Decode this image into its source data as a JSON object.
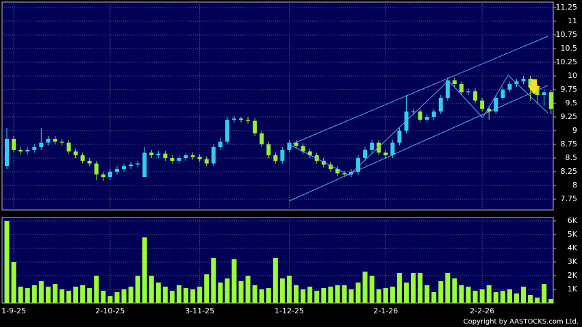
{
  "chart_data": [
    {
      "type": "candlestick",
      "open": [
        8.35,
        8.85,
        8.65,
        8.62,
        8.65,
        8.7,
        8.78,
        8.85,
        8.8,
        8.78,
        8.62,
        8.55,
        8.45,
        8.4,
        8.2,
        8.15,
        8.25,
        8.3,
        8.35,
        8.38,
        8.15,
        8.6,
        8.55,
        8.58,
        8.5,
        8.45,
        8.5,
        8.55,
        8.52,
        8.48,
        8.4,
        8.7,
        8.8,
        9.2,
        9.22,
        9.2,
        9.18,
        8.95,
        8.75,
        8.55,
        8.45,
        8.65,
        8.78,
        8.72,
        8.62,
        8.55,
        8.45,
        8.38,
        8.3,
        8.22,
        8.2,
        8.25,
        8.5,
        8.65,
        8.78,
        8.6,
        8.55,
        8.78,
        9.0,
        9.35,
        9.35,
        9.2,
        9.25,
        9.35,
        9.6,
        9.92,
        9.85,
        9.7,
        9.72,
        9.55,
        9.4,
        9.35,
        9.6,
        9.75,
        9.85,
        9.9,
        9.95,
        9.8,
        9.65,
        9.7
      ],
      "high": [
        9.05,
        8.9,
        8.7,
        8.7,
        8.75,
        9.05,
        8.9,
        8.9,
        8.85,
        8.83,
        8.67,
        8.6,
        8.5,
        8.45,
        8.25,
        8.3,
        8.35,
        8.4,
        8.43,
        8.45,
        8.7,
        8.65,
        8.63,
        8.63,
        8.55,
        8.55,
        8.6,
        8.6,
        8.57,
        8.53,
        8.75,
        8.88,
        9.25,
        9.27,
        9.25,
        9.25,
        9.23,
        9.0,
        8.8,
        8.6,
        8.7,
        8.83,
        8.83,
        8.77,
        8.67,
        8.6,
        8.5,
        8.43,
        8.35,
        8.27,
        8.3,
        8.55,
        8.7,
        8.83,
        8.83,
        8.65,
        8.83,
        9.05,
        9.65,
        9.4,
        9.4,
        9.3,
        9.4,
        9.65,
        9.97,
        9.97,
        9.9,
        9.77,
        9.77,
        9.6,
        9.45,
        9.65,
        9.8,
        9.9,
        9.95,
        10.0,
        10.0,
        9.85,
        9.75,
        9.75
      ],
      "low": [
        8.3,
        8.6,
        8.57,
        8.57,
        8.6,
        8.65,
        8.73,
        8.75,
        8.73,
        8.57,
        8.5,
        8.4,
        8.35,
        8.1,
        8.08,
        8.1,
        8.2,
        8.25,
        8.3,
        8.33,
        8.15,
        8.5,
        8.5,
        8.45,
        8.4,
        8.4,
        8.45,
        8.47,
        8.43,
        8.35,
        8.35,
        8.65,
        8.75,
        9.15,
        9.15,
        9.13,
        8.9,
        8.7,
        8.5,
        8.4,
        8.4,
        8.6,
        8.67,
        8.57,
        8.5,
        8.4,
        8.33,
        8.25,
        8.17,
        8.15,
        8.15,
        8.2,
        8.45,
        8.6,
        8.55,
        8.5,
        8.5,
        8.73,
        8.95,
        9.3,
        9.15,
        9.15,
        9.2,
        9.3,
        9.55,
        9.8,
        9.65,
        9.65,
        9.5,
        9.35,
        9.2,
        9.3,
        9.55,
        9.7,
        9.8,
        9.85,
        9.55,
        9.5,
        9.45,
        9.3
      ],
      "close": [
        8.85,
        8.65,
        8.62,
        8.65,
        8.7,
        8.78,
        8.85,
        8.8,
        8.78,
        8.62,
        8.55,
        8.45,
        8.4,
        8.2,
        8.15,
        8.25,
        8.3,
        8.35,
        8.38,
        8.4,
        8.6,
        8.55,
        8.58,
        8.5,
        8.45,
        8.5,
        8.55,
        8.52,
        8.48,
        8.4,
        8.7,
        8.8,
        9.2,
        9.22,
        9.2,
        9.18,
        8.95,
        8.75,
        8.55,
        8.45,
        8.65,
        8.78,
        8.72,
        8.62,
        8.55,
        8.45,
        8.38,
        8.3,
        8.22,
        8.2,
        8.25,
        8.5,
        8.65,
        8.78,
        8.6,
        8.55,
        8.78,
        9.0,
        9.35,
        9.35,
        9.2,
        9.25,
        9.35,
        9.6,
        9.92,
        9.85,
        9.7,
        9.72,
        9.55,
        9.4,
        9.35,
        9.6,
        9.75,
        9.85,
        9.9,
        9.95,
        9.8,
        9.65,
        9.7,
        9.4
      ],
      "up_color": "#33ccee",
      "down_color": "#99ee33",
      "ylim": [
        7.55,
        11.35
      ],
      "yticks": [
        7.75,
        8,
        8.25,
        8.5,
        8.75,
        9,
        9.25,
        9.5,
        9.75,
        10,
        10.25,
        10.5,
        10.75,
        11,
        11.25
      ],
      "grid": true
    },
    {
      "type": "bar",
      "categories": [
        null,
        "1-9-25",
        null,
        null,
        null,
        null,
        null,
        null,
        null,
        null,
        null,
        null,
        null,
        null,
        null,
        "2-10-25",
        null,
        null,
        null,
        null,
        null,
        null,
        null,
        null,
        null,
        null,
        null,
        null,
        "3-11-25",
        null,
        null,
        null,
        null,
        null,
        null,
        null,
        null,
        null,
        null,
        null,
        null,
        "1-12-25",
        null,
        null,
        null,
        null,
        null,
        null,
        null,
        null,
        null,
        null,
        null,
        null,
        null,
        "2-1-26",
        null,
        null,
        null,
        null,
        null,
        null,
        null,
        null,
        null,
        null,
        null,
        null,
        null,
        "2-2-26",
        null,
        null,
        null,
        null,
        null,
        null,
        null,
        null,
        null,
        null
      ],
      "values": [
        6000,
        3000,
        1200,
        1100,
        1300,
        1600,
        1200,
        1400,
        1000,
        900,
        1200,
        1300,
        1100,
        2000,
        900,
        500,
        800,
        1000,
        1200,
        2000,
        4800,
        2000,
        1500,
        1200,
        900,
        1300,
        1100,
        1000,
        1200,
        2100,
        3300,
        1500,
        1800,
        3200,
        1600,
        2000,
        1300,
        1000,
        1100,
        3300,
        1800,
        2000,
        1300,
        1000,
        1200,
        900,
        1100,
        1200,
        1300,
        1300,
        1000,
        1500,
        2300,
        2000,
        1000,
        1100,
        1200,
        2200,
        1500,
        2200,
        2200,
        1300,
        800,
        1600,
        2200,
        1800,
        1300,
        1200,
        900,
        1000,
        1300,
        800,
        900,
        1000,
        700,
        1200,
        600,
        400,
        1400,
        300
      ],
      "color": "#99ff33",
      "ylim": [
        0,
        6250
      ],
      "yticks": [
        {
          "value": 1000,
          "label": "1K"
        },
        {
          "value": 2000,
          "label": "2K"
        },
        {
          "value": 3000,
          "label": "3K"
        },
        {
          "value": 4000,
          "label": "4K"
        },
        {
          "value": 5000,
          "label": "5K"
        },
        {
          "value": 6000,
          "label": "6K"
        }
      ],
      "grid": true
    }
  ],
  "copyright": "Copyright by AASTOCKS.com Ltd."
}
